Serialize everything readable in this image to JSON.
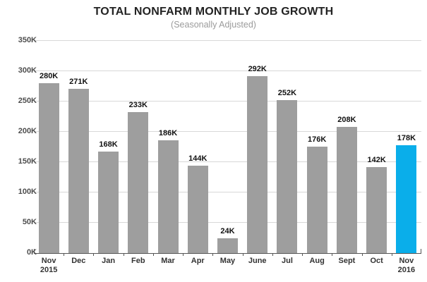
{
  "chart": {
    "title": "TOTAL NONFARM MONTHLY JOB GROWTH",
    "subtitle": "(Seasonally Adjusted)"
  },
  "chart_data": {
    "type": "bar",
    "title": "TOTAL NONFARM MONTHLY JOB GROWTH",
    "subtitle": "(Seasonally Adjusted)",
    "categories": [
      "Nov",
      "Dec",
      "Jan",
      "Feb",
      "Mar",
      "Apr",
      "May",
      "June",
      "Jul",
      "Aug",
      "Sept",
      "Oct",
      "Nov"
    ],
    "category_years": [
      "2015",
      "",
      "",
      "",
      "",
      "",
      "",
      "",
      "",
      "",
      "",
      "",
      "2016"
    ],
    "values": [
      280,
      271,
      168,
      233,
      186,
      144,
      24,
      292,
      252,
      176,
      208,
      142,
      178
    ],
    "value_labels": [
      "280K",
      "271K",
      "168K",
      "233K",
      "186K",
      "144K",
      "24K",
      "292K",
      "252K",
      "176K",
      "208K",
      "142K",
      "178K"
    ],
    "unit": "K",
    "xlabel": "",
    "ylabel": "",
    "ylim": [
      0,
      350
    ],
    "ytick_step": 50,
    "ytick_labels": [
      "0K",
      "50K",
      "100K",
      "150K",
      "200K",
      "250K",
      "300K",
      "350K"
    ],
    "grid": true,
    "legend": "none",
    "bar_color": "#9E9E9E",
    "highlight_color": "#0AAEEA",
    "highlight_index": 12,
    "gridline_color": "#D8D8D8",
    "axis_color": "#555555"
  }
}
